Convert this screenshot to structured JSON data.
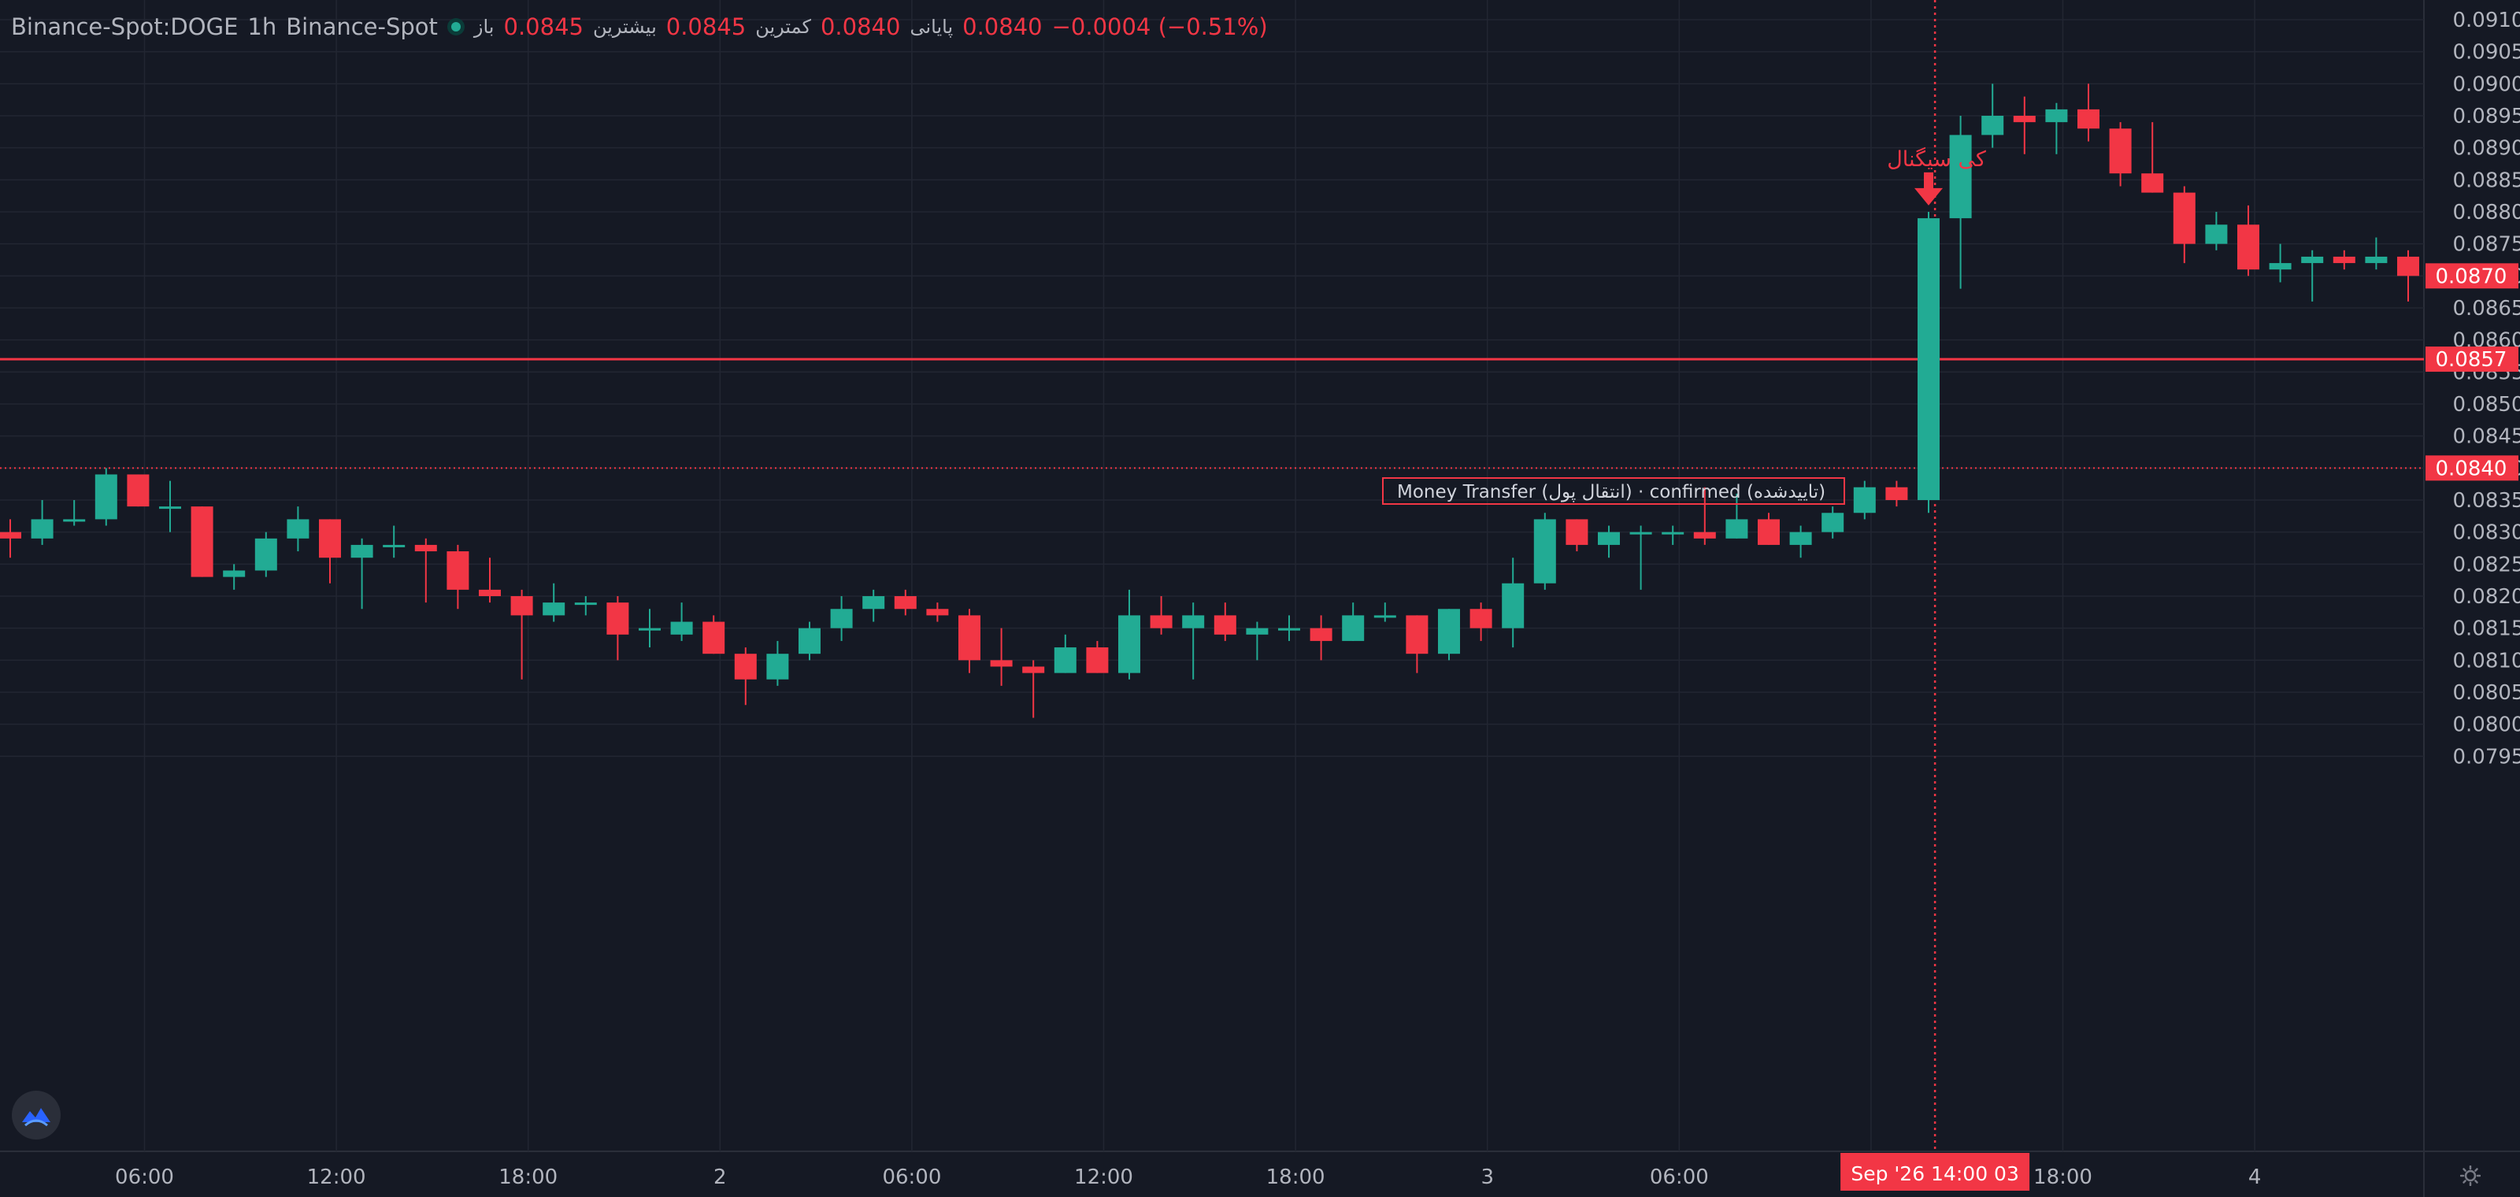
{
  "symbol": "Binance-Spot:DOGE",
  "interval": "1h",
  "exchange": "Binance-Spot",
  "legend": {
    "open_label": "باز",
    "open": "0.0845",
    "high_label": "بیشترین",
    "high": "0.0845",
    "low_label": "کمترین",
    "low": "0.0840",
    "close_label": "پایانی",
    "close": "0.0840",
    "change": "−0.0004 (−0.51%)"
  },
  "colors": {
    "background": "#151924",
    "grid": "#222632",
    "up": "#22ab94",
    "down": "#f23645",
    "axis_text": "#b2b5be"
  },
  "icons": {
    "logo": "logo-icon",
    "settings": "settings-icon",
    "status": "status-dot-icon"
  },
  "chart_data": {
    "type": "candlestick",
    "y_axis": {
      "position": "right",
      "range": [
        0.0791,
        0.0912
      ],
      "tick_labels": [
        "0.0795",
        "0.0800",
        "0.0805",
        "0.0810",
        "0.0815",
        "0.0820",
        "0.0825",
        "0.0830",
        "0.0835",
        "0.0840",
        "0.0845",
        "0.0850",
        "0.0855",
        "0.0860",
        "0.0865",
        "0.0870",
        "0.0875",
        "0.0880",
        "0.0885",
        "0.0890",
        "0.0895",
        "0.0900",
        "0.0905",
        "0.0910"
      ]
    },
    "x_axis": {
      "tick_labels": [
        "06:00",
        "12:00",
        "18:00",
        "2",
        "06:00",
        "12:00",
        "18:00",
        "3",
        "06:00",
        "12:00",
        "18:00",
        "4"
      ],
      "tick_candle_index": [
        4.2,
        10.2,
        16.2,
        22.2,
        28.2,
        34.2,
        40.2,
        46.2,
        52.2,
        58.2,
        64.2,
        70.2
      ],
      "crosshair_label": "Sep '26   14:00 03",
      "crosshair_candle_index": 60.2
    },
    "grid": true,
    "candles": [
      {
        "o": 0.083,
        "h": 0.0832,
        "l": 0.0826,
        "c": 0.0829
      },
      {
        "o": 0.0829,
        "h": 0.0835,
        "l": 0.0828,
        "c": 0.0832
      },
      {
        "o": 0.0832,
        "h": 0.0835,
        "l": 0.0831,
        "c": 0.0832
      },
      {
        "o": 0.0832,
        "h": 0.084,
        "l": 0.0831,
        "c": 0.0839
      },
      {
        "o": 0.0839,
        "h": 0.0839,
        "l": 0.0834,
        "c": 0.0834
      },
      {
        "o": 0.0834,
        "h": 0.0838,
        "l": 0.083,
        "c": 0.0834
      },
      {
        "o": 0.0834,
        "h": 0.0834,
        "l": 0.0823,
        "c": 0.0823
      },
      {
        "o": 0.0823,
        "h": 0.0825,
        "l": 0.0821,
        "c": 0.0824
      },
      {
        "o": 0.0824,
        "h": 0.083,
        "l": 0.0823,
        "c": 0.0829
      },
      {
        "o": 0.0829,
        "h": 0.0834,
        "l": 0.0827,
        "c": 0.0832
      },
      {
        "o": 0.0832,
        "h": 0.0832,
        "l": 0.0822,
        "c": 0.0826
      },
      {
        "o": 0.0826,
        "h": 0.0829,
        "l": 0.0818,
        "c": 0.0828
      },
      {
        "o": 0.0828,
        "h": 0.0831,
        "l": 0.0826,
        "c": 0.0828
      },
      {
        "o": 0.0828,
        "h": 0.0829,
        "l": 0.0819,
        "c": 0.0827
      },
      {
        "o": 0.0827,
        "h": 0.0828,
        "l": 0.0818,
        "c": 0.0821
      },
      {
        "o": 0.0821,
        "h": 0.0826,
        "l": 0.0819,
        "c": 0.082
      },
      {
        "o": 0.082,
        "h": 0.0821,
        "l": 0.0807,
        "c": 0.0817
      },
      {
        "o": 0.0817,
        "h": 0.0822,
        "l": 0.0816,
        "c": 0.0819
      },
      {
        "o": 0.0819,
        "h": 0.082,
        "l": 0.0817,
        "c": 0.0819
      },
      {
        "o": 0.0819,
        "h": 0.082,
        "l": 0.081,
        "c": 0.0814
      },
      {
        "o": 0.0815,
        "h": 0.0818,
        "l": 0.0812,
        "c": 0.0815
      },
      {
        "o": 0.0814,
        "h": 0.0819,
        "l": 0.0813,
        "c": 0.0816
      },
      {
        "o": 0.0816,
        "h": 0.0817,
        "l": 0.0811,
        "c": 0.0811
      },
      {
        "o": 0.0811,
        "h": 0.0812,
        "l": 0.0803,
        "c": 0.0807
      },
      {
        "o": 0.0807,
        "h": 0.0813,
        "l": 0.0806,
        "c": 0.0811
      },
      {
        "o": 0.0811,
        "h": 0.0816,
        "l": 0.081,
        "c": 0.0815
      },
      {
        "o": 0.0815,
        "h": 0.082,
        "l": 0.0813,
        "c": 0.0818
      },
      {
        "o": 0.0818,
        "h": 0.0821,
        "l": 0.0816,
        "c": 0.082
      },
      {
        "o": 0.082,
        "h": 0.0821,
        "l": 0.0817,
        "c": 0.0818
      },
      {
        "o": 0.0818,
        "h": 0.0819,
        "l": 0.0816,
        "c": 0.0817
      },
      {
        "o": 0.0817,
        "h": 0.0818,
        "l": 0.0808,
        "c": 0.081
      },
      {
        "o": 0.081,
        "h": 0.0815,
        "l": 0.0806,
        "c": 0.0809
      },
      {
        "o": 0.0809,
        "h": 0.081,
        "l": 0.0801,
        "c": 0.0808
      },
      {
        "o": 0.0808,
        "h": 0.0814,
        "l": 0.0808,
        "c": 0.0812
      },
      {
        "o": 0.0812,
        "h": 0.0813,
        "l": 0.0808,
        "c": 0.0808
      },
      {
        "o": 0.0808,
        "h": 0.0821,
        "l": 0.0807,
        "c": 0.0817
      },
      {
        "o": 0.0817,
        "h": 0.082,
        "l": 0.0814,
        "c": 0.0815
      },
      {
        "o": 0.0815,
        "h": 0.0819,
        "l": 0.0807,
        "c": 0.0817
      },
      {
        "o": 0.0817,
        "h": 0.0819,
        "l": 0.0813,
        "c": 0.0814
      },
      {
        "o": 0.0814,
        "h": 0.0816,
        "l": 0.081,
        "c": 0.0815
      },
      {
        "o": 0.0815,
        "h": 0.0817,
        "l": 0.0813,
        "c": 0.0815
      },
      {
        "o": 0.0815,
        "h": 0.0817,
        "l": 0.081,
        "c": 0.0813
      },
      {
        "o": 0.0813,
        "h": 0.0819,
        "l": 0.0813,
        "c": 0.0817
      },
      {
        "o": 0.0817,
        "h": 0.0819,
        "l": 0.0816,
        "c": 0.0817
      },
      {
        "o": 0.0817,
        "h": 0.0817,
        "l": 0.0808,
        "c": 0.0811
      },
      {
        "o": 0.0811,
        "h": 0.0818,
        "l": 0.081,
        "c": 0.0818
      },
      {
        "o": 0.0818,
        "h": 0.0819,
        "l": 0.0813,
        "c": 0.0815
      },
      {
        "o": 0.0815,
        "h": 0.0826,
        "l": 0.0812,
        "c": 0.0822
      },
      {
        "o": 0.0822,
        "h": 0.0833,
        "l": 0.0821,
        "c": 0.0832
      },
      {
        "o": 0.0832,
        "h": 0.0832,
        "l": 0.0827,
        "c": 0.0828
      },
      {
        "o": 0.0828,
        "h": 0.0831,
        "l": 0.0826,
        "c": 0.083
      },
      {
        "o": 0.083,
        "h": 0.0831,
        "l": 0.0821,
        "c": 0.083
      },
      {
        "o": 0.083,
        "h": 0.0831,
        "l": 0.0828,
        "c": 0.083
      },
      {
        "o": 0.083,
        "h": 0.0837,
        "l": 0.0828,
        "c": 0.0829
      },
      {
        "o": 0.0829,
        "h": 0.0836,
        "l": 0.0829,
        "c": 0.0832
      },
      {
        "o": 0.0832,
        "h": 0.0833,
        "l": 0.0828,
        "c": 0.0828
      },
      {
        "o": 0.0828,
        "h": 0.0831,
        "l": 0.0826,
        "c": 0.083
      },
      {
        "o": 0.083,
        "h": 0.0834,
        "l": 0.0829,
        "c": 0.0833
      },
      {
        "o": 0.0833,
        "h": 0.0838,
        "l": 0.0832,
        "c": 0.0837
      },
      {
        "o": 0.0837,
        "h": 0.0838,
        "l": 0.0834,
        "c": 0.0835
      },
      {
        "o": 0.0835,
        "h": 0.088,
        "l": 0.0833,
        "c": 0.0879
      },
      {
        "o": 0.0879,
        "h": 0.0895,
        "l": 0.0868,
        "c": 0.0892
      },
      {
        "o": 0.0892,
        "h": 0.09,
        "l": 0.089,
        "c": 0.0895
      },
      {
        "o": 0.0895,
        "h": 0.0898,
        "l": 0.0889,
        "c": 0.0894
      },
      {
        "o": 0.0894,
        "h": 0.0897,
        "l": 0.0889,
        "c": 0.0896
      },
      {
        "o": 0.0896,
        "h": 0.09,
        "l": 0.0891,
        "c": 0.0893
      },
      {
        "o": 0.0893,
        "h": 0.0894,
        "l": 0.0884,
        "c": 0.0886
      },
      {
        "o": 0.0886,
        "h": 0.0894,
        "l": 0.0883,
        "c": 0.0883
      },
      {
        "o": 0.0883,
        "h": 0.0884,
        "l": 0.0872,
        "c": 0.0875
      },
      {
        "o": 0.0875,
        "h": 0.088,
        "l": 0.0874,
        "c": 0.0878
      },
      {
        "o": 0.0878,
        "h": 0.0881,
        "l": 0.087,
        "c": 0.0871
      },
      {
        "o": 0.0871,
        "h": 0.0875,
        "l": 0.0869,
        "c": 0.0872
      },
      {
        "o": 0.0872,
        "h": 0.0874,
        "l": 0.0866,
        "c": 0.0873
      },
      {
        "o": 0.0873,
        "h": 0.0874,
        "l": 0.0871,
        "c": 0.0872
      },
      {
        "o": 0.0872,
        "h": 0.0876,
        "l": 0.0871,
        "c": 0.0873
      },
      {
        "o": 0.0873,
        "h": 0.0874,
        "l": 0.0866,
        "c": 0.087
      }
    ],
    "horizontal_lines": [
      {
        "value": 0.0857,
        "label": "0.0857",
        "style": "solid"
      },
      {
        "value": 0.084,
        "label": "0.0840",
        "style": "dotted"
      }
    ],
    "last_price_label": {
      "value": 0.087,
      "label": "0.0870"
    },
    "annotations": [
      {
        "text": "Money Transfer (انتقال پول) · confirmed (تاییدشده)",
        "type": "box"
      },
      {
        "text": "کی سیگنال",
        "type": "arrow-down",
        "candle_index": 60,
        "value": 0.0881
      }
    ]
  }
}
